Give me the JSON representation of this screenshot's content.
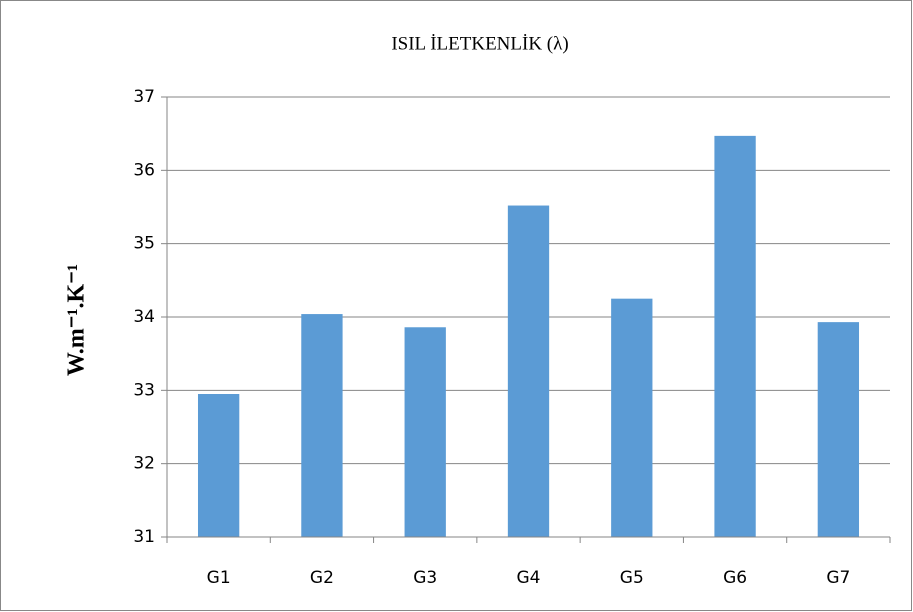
{
  "chart_data": {
    "type": "bar",
    "title": "ISIL İLETKENLİK  (λ)",
    "ylabel": "W.m⁻¹.K⁻¹",
    "categories": [
      "G1",
      "G2",
      "G3",
      "G4",
      "G5",
      "G6",
      "G7"
    ],
    "values": [
      32.95,
      34.04,
      33.86,
      35.52,
      34.25,
      36.47,
      33.93
    ],
    "color": "#5b9bd5",
    "ylim": [
      31,
      37
    ],
    "yticks": [
      31,
      32,
      33,
      34,
      35,
      36,
      37
    ],
    "grid": true
  }
}
